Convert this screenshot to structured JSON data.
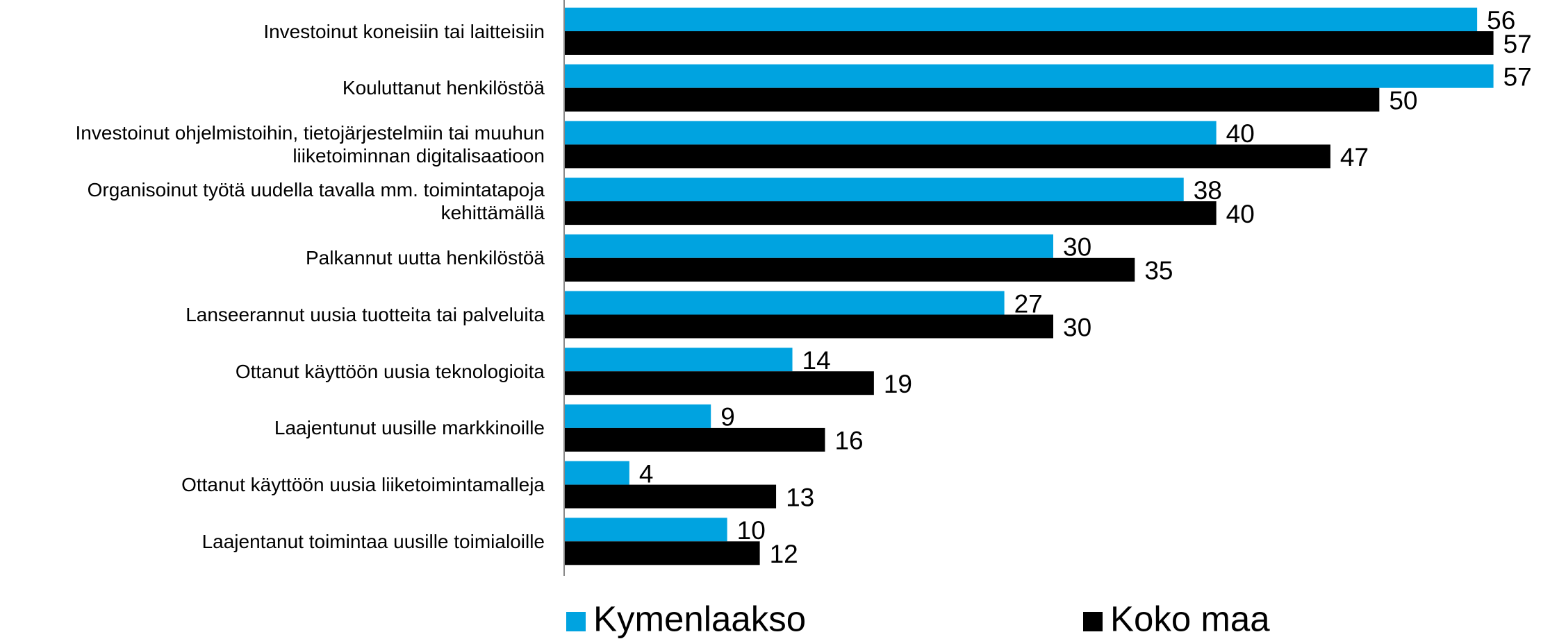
{
  "chart_data": {
    "type": "bar",
    "orientation": "horizontal",
    "categories": [
      "Investoinut koneisiin tai laitteisiin",
      "Kouluttanut henkilöstöä",
      "Investoinut ohjelmistoihin, tietojärjestelmiin tai muuhun liiketoiminnan digitalisaatioon",
      "Organisoinut työtä uudella tavalla mm. toimintatapoja kehittämällä",
      "Palkannut uutta henkilöstöä",
      "Lanseerannut uusia tuotteita tai palveluita",
      "Ottanut käyttöön uusia teknologioita",
      "Laajentunut uusille markkinoille",
      "Ottanut käyttöön uusia liiketoimintamalleja",
      "Laajentanut toimintaa uusille toimialoille"
    ],
    "series": [
      {
        "name": "Kymenlaakso",
        "color": "#00a3e0",
        "values": [
          56,
          57,
          40,
          38,
          30,
          27,
          14,
          9,
          4,
          10
        ]
      },
      {
        "name": "Koko maa",
        "color": "#000000",
        "values": [
          57,
          50,
          47,
          40,
          35,
          30,
          19,
          16,
          13,
          12
        ]
      }
    ],
    "xlim": [
      0,
      60
    ],
    "legend": "bottom"
  }
}
